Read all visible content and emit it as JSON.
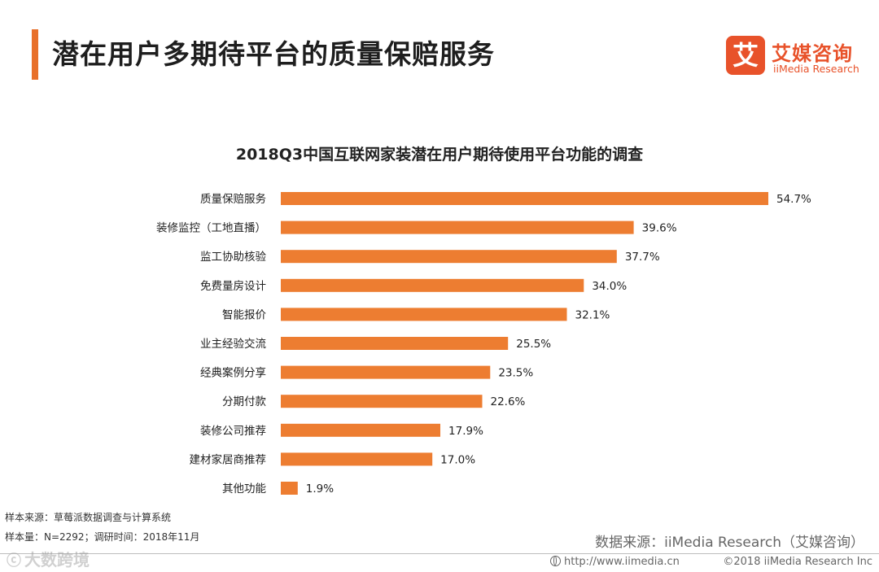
{
  "header": {
    "title": "潜在用户多期待平台的质量保赔服务",
    "accent_color": "#e8702a"
  },
  "logo": {
    "mark_char": "艾",
    "name_cn": "艾媒咨询",
    "name_en": "iiMedia Research",
    "color": "#e8522a"
  },
  "chart_data": {
    "type": "bar",
    "orientation": "horizontal",
    "title": "2018Q3中国互联网家装潜在用户期待使用平台功能的调查",
    "categories": [
      "质量保赔服务",
      "装修监控（工地直播）",
      "监工协助核验",
      "免费量房设计",
      "智能报价",
      "业主经验交流",
      "经典案例分享",
      "分期付款",
      "装修公司推荐",
      "建材家居商推荐",
      "其他功能"
    ],
    "values": [
      54.7,
      39.6,
      37.7,
      34.0,
      32.1,
      25.5,
      23.5,
      22.6,
      17.9,
      17.0,
      1.9
    ],
    "value_labels": [
      "54.7%",
      "39.6%",
      "37.7%",
      "34.0%",
      "32.1%",
      "25.5%",
      "23.5%",
      "22.6%",
      "17.9%",
      "17.0%",
      "1.9%"
    ],
    "unit": "%",
    "xlim": [
      0,
      54.7
    ],
    "bar_color": "#ed7d31",
    "grid": false,
    "legend": "none"
  },
  "notes": {
    "sample_source": "样本来源：草莓派数据调查与计算系统",
    "sample_size": "样本量：N=2292；调研时间：2018年11月"
  },
  "source": "数据来源：iiMedia Research（艾媒咨询）",
  "footer": {
    "url": "http://www.iimedia.cn",
    "copyright": "©2018  iiMedia Research  Inc"
  },
  "watermark": {
    "icon": "ⓒ",
    "text": "大数跨境"
  }
}
